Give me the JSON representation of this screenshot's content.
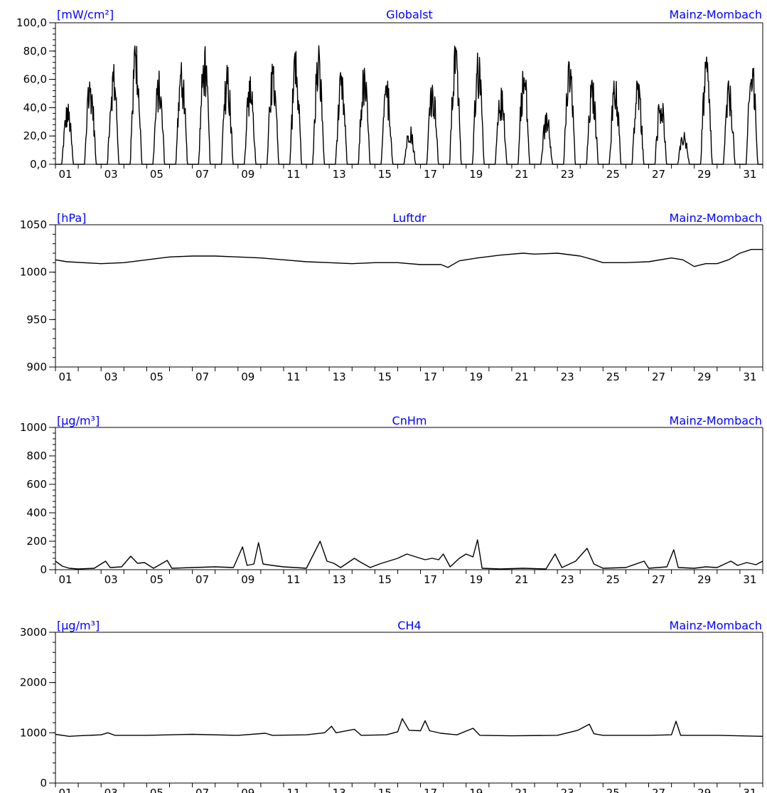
{
  "colors": {
    "title_blue": "#0000ff",
    "axis": "#000000",
    "series": "#000000",
    "background": "#ffffff"
  },
  "day_labels": [
    "01",
    "03",
    "05",
    "07",
    "09",
    "11",
    "13",
    "15",
    "17",
    "19",
    "21",
    "23",
    "25",
    "27",
    "29",
    "31"
  ],
  "chart_data": [
    {
      "type": "line",
      "title": "Globalst",
      "unit_label": "[mW/cm²]",
      "station": "Mainz-Mombach",
      "y_tick_labels": [
        "100,0",
        "80,0",
        "60,0",
        "40,0",
        "20,0",
        "0,0"
      ],
      "y_ticks": [
        100,
        80,
        60,
        40,
        20,
        0
      ],
      "ylim": [
        0,
        100
      ],
      "x": "days 1-32 (daily diurnal cycle, zero at night)",
      "series": [
        {
          "daily_peaks": [
            45,
            65,
            72,
            88,
            66,
            72,
            85,
            70,
            62,
            72,
            80,
            84,
            66,
            70,
            60,
            28,
            60,
            85,
            80,
            55,
            72,
            38,
            75,
            62,
            62,
            62,
            52,
            23,
            76,
            60,
            76
          ]
        }
      ]
    },
    {
      "type": "line",
      "title": "Luftdr",
      "unit_label": "[hPa]",
      "station": "Mainz-Mombach",
      "y_tick_labels": [
        "1050",
        "1000",
        "950",
        "900"
      ],
      "y_ticks": [
        1050,
        1000,
        950,
        900
      ],
      "ylim": [
        900,
        1050
      ],
      "series": [
        {
          "points": [
            [
              1,
              1013
            ],
            [
              1.5,
              1011
            ],
            [
              3,
              1009
            ],
            [
              4,
              1010
            ],
            [
              5,
              1013
            ],
            [
              6,
              1016
            ],
            [
              7,
              1017
            ],
            [
              8,
              1017
            ],
            [
              9,
              1016
            ],
            [
              10,
              1015
            ],
            [
              11,
              1013
            ],
            [
              12,
              1011
            ],
            [
              13,
              1010
            ],
            [
              14,
              1009
            ],
            [
              15,
              1010
            ],
            [
              16,
              1010
            ],
            [
              17,
              1008
            ],
            [
              17.9,
              1008
            ],
            [
              18.2,
              1005
            ],
            [
              18.7,
              1012
            ],
            [
              19.5,
              1015
            ],
            [
              20.5,
              1018
            ],
            [
              21.5,
              1020
            ],
            [
              22,
              1019
            ],
            [
              23,
              1020
            ],
            [
              24,
              1017
            ],
            [
              24.6,
              1013
            ],
            [
              25,
              1010
            ],
            [
              26,
              1010
            ],
            [
              27,
              1011
            ],
            [
              28,
              1015
            ],
            [
              28.5,
              1013
            ],
            [
              29,
              1006
            ],
            [
              29.5,
              1009
            ],
            [
              30,
              1009
            ],
            [
              30.5,
              1013
            ],
            [
              31,
              1020
            ],
            [
              31.5,
              1024
            ],
            [
              32,
              1024
            ]
          ]
        }
      ]
    },
    {
      "type": "line",
      "title": "CnHm",
      "unit_label": "[μg/m³]",
      "station": "Mainz-Mombach",
      "y_tick_labels": [
        "1000",
        "800",
        "600",
        "400",
        "200",
        "0"
      ],
      "y_ticks": [
        1000,
        800,
        600,
        400,
        200,
        0
      ],
      "ylim": [
        0,
        1000
      ],
      "series": [
        {
          "points": [
            [
              1,
              60
            ],
            [
              1.3,
              25
            ],
            [
              1.6,
              10
            ],
            [
              2,
              5
            ],
            [
              2.7,
              10
            ],
            [
              3.2,
              60
            ],
            [
              3.4,
              15
            ],
            [
              3.9,
              20
            ],
            [
              4.3,
              95
            ],
            [
              4.6,
              45
            ],
            [
              4.9,
              50
            ],
            [
              5.3,
              10
            ],
            [
              5.9,
              65
            ],
            [
              6.1,
              10
            ],
            [
              7,
              15
            ],
            [
              8,
              20
            ],
            [
              8.8,
              15
            ],
            [
              9.2,
              160
            ],
            [
              9.4,
              30
            ],
            [
              9.7,
              40
            ],
            [
              9.9,
              190
            ],
            [
              10.1,
              40
            ],
            [
              10.5,
              30
            ],
            [
              11,
              20
            ],
            [
              12,
              10
            ],
            [
              12.6,
              200
            ],
            [
              12.9,
              60
            ],
            [
              13.2,
              45
            ],
            [
              13.5,
              15
            ],
            [
              14.1,
              80
            ],
            [
              14.4,
              50
            ],
            [
              14.8,
              15
            ],
            [
              15.2,
              40
            ],
            [
              15.6,
              60
            ],
            [
              16,
              80
            ],
            [
              16.4,
              110
            ],
            [
              16.8,
              90
            ],
            [
              17.2,
              70
            ],
            [
              17.5,
              80
            ],
            [
              17.8,
              70
            ],
            [
              18,
              110
            ],
            [
              18.3,
              20
            ],
            [
              18.7,
              80
            ],
            [
              19,
              110
            ],
            [
              19.3,
              90
            ],
            [
              19.5,
              210
            ],
            [
              19.7,
              10
            ],
            [
              20.5,
              5
            ],
            [
              21.5,
              10
            ],
            [
              22.5,
              5
            ],
            [
              22.9,
              110
            ],
            [
              23.2,
              15
            ],
            [
              23.8,
              60
            ],
            [
              24.3,
              150
            ],
            [
              24.6,
              40
            ],
            [
              25,
              10
            ],
            [
              26,
              15
            ],
            [
              26.8,
              60
            ],
            [
              27,
              10
            ],
            [
              27.8,
              20
            ],
            [
              28.1,
              140
            ],
            [
              28.3,
              15
            ],
            [
              29,
              10
            ],
            [
              29.5,
              20
            ],
            [
              30,
              15
            ],
            [
              30.6,
              60
            ],
            [
              30.9,
              30
            ],
            [
              31.3,
              50
            ],
            [
              31.7,
              35
            ],
            [
              32,
              60
            ]
          ]
        }
      ]
    },
    {
      "type": "line",
      "title": "CH4",
      "unit_label": "[μg/m³]",
      "station": "Mainz-Mombach",
      "y_tick_labels": [
        "3000",
        "2000",
        "1000",
        "0"
      ],
      "y_ticks": [
        3000,
        2000,
        1000,
        0
      ],
      "ylim": [
        0,
        3000
      ],
      "series": [
        {
          "points": [
            [
              1,
              970
            ],
            [
              1.6,
              930
            ],
            [
              2,
              940
            ],
            [
              3,
              960
            ],
            [
              3.3,
              1000
            ],
            [
              3.6,
              950
            ],
            [
              5,
              950
            ],
            [
              7,
              970
            ],
            [
              9,
              950
            ],
            [
              10.2,
              990
            ],
            [
              10.5,
              950
            ],
            [
              12,
              960
            ],
            [
              12.8,
              1000
            ],
            [
              13.1,
              1130
            ],
            [
              13.3,
              1000
            ],
            [
              14.1,
              1070
            ],
            [
              14.4,
              950
            ],
            [
              15.5,
              960
            ],
            [
              16,
              1020
            ],
            [
              16.2,
              1280
            ],
            [
              16.5,
              1050
            ],
            [
              17,
              1040
            ],
            [
              17.2,
              1240
            ],
            [
              17.4,
              1040
            ],
            [
              17.9,
              990
            ],
            [
              18.6,
              960
            ],
            [
              19.3,
              1090
            ],
            [
              19.6,
              950
            ],
            [
              21,
              940
            ],
            [
              23,
              950
            ],
            [
              23.9,
              1050
            ],
            [
              24.4,
              1170
            ],
            [
              24.6,
              980
            ],
            [
              25,
              950
            ],
            [
              27,
              950
            ],
            [
              28,
              960
            ],
            [
              28.2,
              1230
            ],
            [
              28.4,
              950
            ],
            [
              30,
              950
            ],
            [
              32,
              930
            ]
          ]
        }
      ]
    }
  ]
}
